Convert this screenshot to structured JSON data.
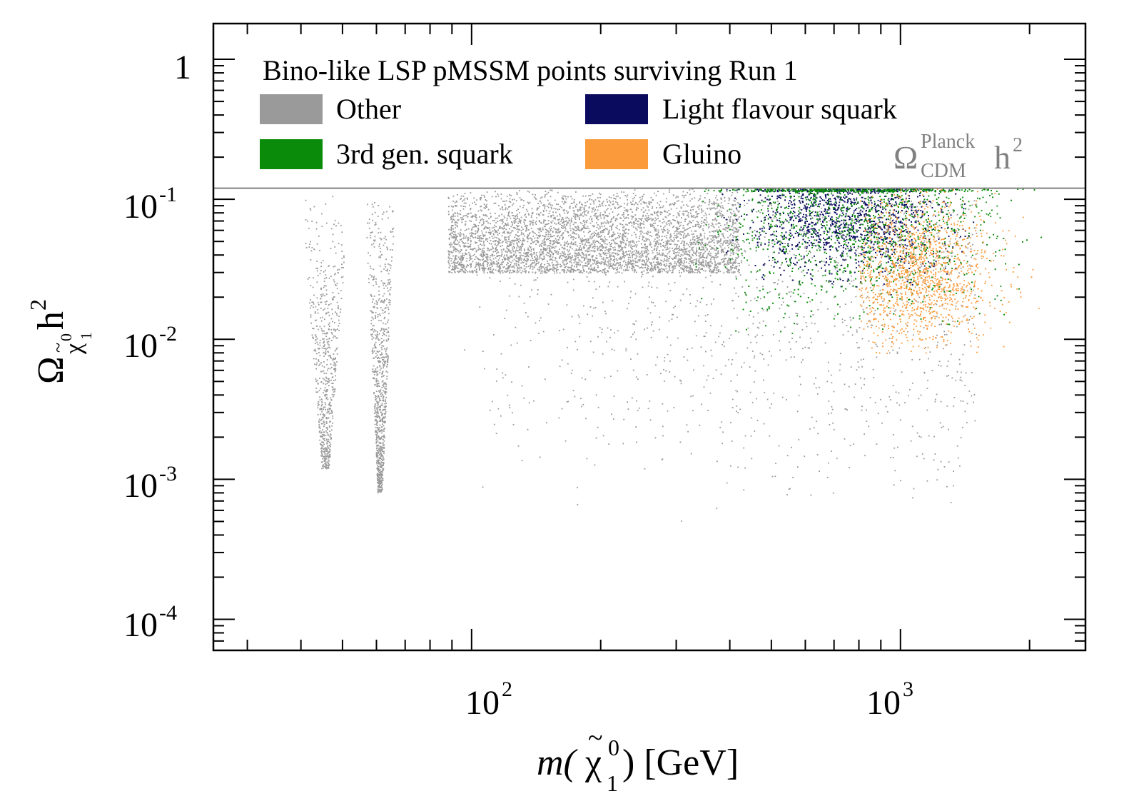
{
  "chart_data": {
    "type": "scatter",
    "title": "Bino-like LSP pMSSM points surviving Run 1",
    "xlabel": {
      "pre": "m(",
      "chi": "χ",
      "sup": "0",
      "sub": "1",
      "post": ") [GeV]"
    },
    "ylabel": {
      "omega": "Ω",
      "sub_chi": "χ",
      "sub_sup": "0",
      "sub_sub": "1",
      "h": "h",
      "h_sup": "2"
    },
    "x_scale": "log",
    "y_scale": "log",
    "xlim": [
      25,
      2700
    ],
    "ylim": [
      6e-05,
      1.8
    ],
    "x_ticks": [
      {
        "value": 100,
        "base": "10",
        "exp": "2"
      },
      {
        "value": 1000,
        "base": "10",
        "exp": "3"
      }
    ],
    "y_ticks": [
      {
        "value": 1,
        "base": "1",
        "exp": ""
      },
      {
        "value": 0.1,
        "base": "10",
        "exp": "-1"
      },
      {
        "value": 0.01,
        "base": "10",
        "exp": "-2"
      },
      {
        "value": 0.001,
        "base": "10",
        "exp": "-3"
      },
      {
        "value": 0.0001,
        "base": "10",
        "exp": "-4"
      }
    ],
    "reference_line": {
      "value": 0.12,
      "label_omega": "Ω",
      "label_sup": "Planck",
      "label_sub": "CDM",
      "label_h": "h",
      "label_h_sup": "2",
      "color": "#808080"
    },
    "legend_position": "top",
    "series": [
      {
        "name": "Other",
        "color": "#9a9a9a",
        "regions": [
          {
            "x": [
              40,
              52
            ],
            "ylow": 0.0012,
            "yhigh": 0.12,
            "n": 650,
            "shape": "funnel",
            "center": 45.5
          },
          {
            "x": [
              56,
              66
            ],
            "ylow": 0.0008,
            "yhigh": 0.12,
            "n": 850,
            "shape": "funnel",
            "center": 61
          },
          {
            "x": [
              88,
              420
            ],
            "ylow": 0.03,
            "yhigh": 0.12,
            "n": 4200,
            "shape": "band"
          },
          {
            "x": [
              95,
              1500
            ],
            "ylow": 0.0005,
            "yhigh": 0.1,
            "n": 1300,
            "shape": "sparse"
          }
        ]
      },
      {
        "name": "Light flavour squark",
        "color": "#0a0a5e",
        "regions": [
          {
            "x": [
              380,
              1500
            ],
            "ylow": 0.015,
            "yhigh": 0.12,
            "n": 2600,
            "shape": "cluster",
            "peak": [
              750,
              0.075
            ]
          }
        ]
      },
      {
        "name": "3rd gen. squark",
        "color": "#0a8c0a",
        "regions": [
          {
            "x": [
              330,
              2200
            ],
            "ylow": 0.005,
            "yhigh": 0.12,
            "n": 2500,
            "shape": "cluster",
            "peak": [
              800,
              0.07
            ]
          }
        ]
      },
      {
        "name": "Gluino",
        "color": "#fb9a3a",
        "regions": [
          {
            "x": [
              800,
              2100
            ],
            "ylow": 0.008,
            "yhigh": 0.12,
            "n": 1500,
            "shape": "cluster",
            "peak": [
              1100,
              0.03
            ]
          }
        ]
      }
    ]
  }
}
